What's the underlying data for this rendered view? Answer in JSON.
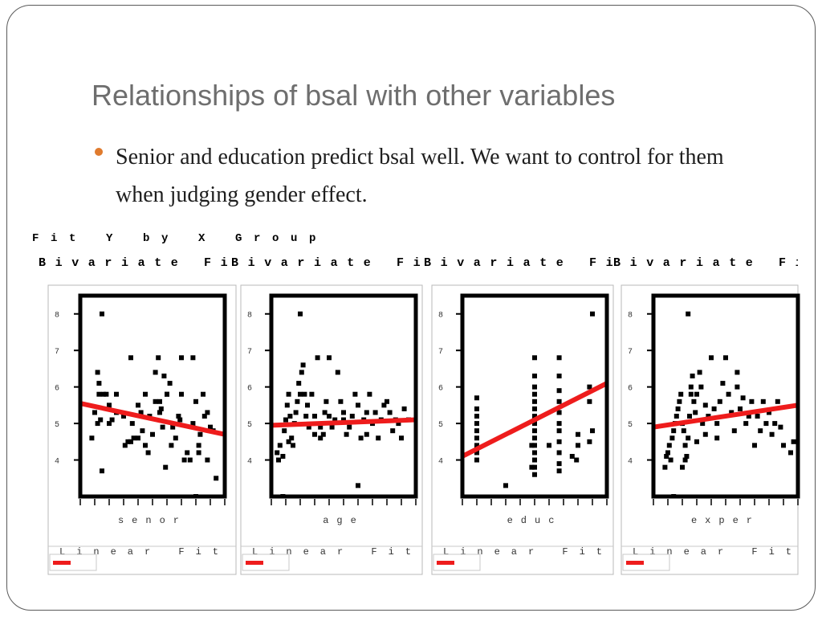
{
  "slide": {
    "title": "Relationships of bsal with other variables",
    "bullet": "Senior and education predict bsal well.  We want to control for them when judging gender effect.",
    "accent_color": "#e07b2e"
  },
  "output": {
    "heading": "Fit Y by X Group",
    "panel_title": "Bivariate Fi"
  },
  "chart_data": [
    {
      "type": "scatter",
      "xlabel": "senor",
      "ylabel": "",
      "title": "",
      "legend_label": "Linear Fit",
      "ytick_labels": [
        "8",
        "7",
        "6",
        "5",
        "4"
      ],
      "fit_color": "#ee1c1c",
      "marker_color": "#000000",
      "xlim": [
        0,
        100
      ],
      "ylim": [
        30,
        85
      ],
      "fit_line": [
        [
          0,
          55.5
        ],
        [
          100,
          47
        ]
      ],
      "points": [
        [
          15,
          80
        ],
        [
          10,
          53
        ],
        [
          12,
          50
        ],
        [
          14,
          51
        ],
        [
          8,
          46
        ],
        [
          13,
          58
        ],
        [
          16,
          58
        ],
        [
          20,
          50
        ],
        [
          22,
          51
        ],
        [
          12,
          64
        ],
        [
          13,
          61
        ],
        [
          18,
          58
        ],
        [
          20,
          55
        ],
        [
          25,
          53
        ],
        [
          30,
          52
        ],
        [
          31,
          44
        ],
        [
          33,
          45
        ],
        [
          35,
          45
        ],
        [
          37,
          46
        ],
        [
          40,
          46
        ],
        [
          42,
          53
        ],
        [
          43,
          48
        ],
        [
          45,
          44
        ],
        [
          47,
          42
        ],
        [
          50,
          47
        ],
        [
          52,
          56
        ],
        [
          55,
          56
        ],
        [
          57,
          49
        ],
        [
          56,
          54
        ],
        [
          58,
          63
        ],
        [
          60,
          58
        ],
        [
          62,
          61
        ],
        [
          64,
          49
        ],
        [
          66,
          46
        ],
        [
          68,
          52
        ],
        [
          69,
          51
        ],
        [
          70,
          58
        ],
        [
          72,
          40
        ],
        [
          74,
          42
        ],
        [
          76,
          40
        ],
        [
          78,
          50
        ],
        [
          80,
          56
        ],
        [
          82,
          44
        ],
        [
          83,
          47
        ],
        [
          85,
          58
        ],
        [
          86,
          52
        ],
        [
          88,
          53
        ],
        [
          90,
          49
        ],
        [
          70,
          68
        ],
        [
          78,
          68
        ],
        [
          54,
          68
        ],
        [
          35,
          68
        ],
        [
          52,
          64
        ],
        [
          63,
          44
        ],
        [
          59,
          38
        ],
        [
          15,
          37
        ],
        [
          60,
          58
        ],
        [
          45,
          58
        ],
        [
          40,
          55
        ],
        [
          82,
          42
        ],
        [
          94,
          35
        ],
        [
          92,
          48
        ],
        [
          88,
          40
        ],
        [
          80,
          30
        ],
        [
          36,
          50
        ],
        [
          55,
          53
        ],
        [
          48,
          52
        ],
        [
          25,
          58
        ]
      ]
    },
    {
      "type": "scatter",
      "xlabel": "age",
      "ylabel": "",
      "title": "",
      "legend_label": "Linear Fit",
      "ytick_labels": [
        "8",
        "7",
        "6",
        "5",
        "4"
      ],
      "fit_color": "#ee1c1c",
      "marker_color": "#000000",
      "xlim": [
        0,
        100
      ],
      "ylim": [
        30,
        85
      ],
      "fit_line": [
        [
          0,
          49.5
        ],
        [
          100,
          51
        ]
      ],
      "points": [
        [
          4,
          42
        ],
        [
          5,
          40
        ],
        [
          6,
          44
        ],
        [
          8,
          41
        ],
        [
          9,
          48
        ],
        [
          10,
          51
        ],
        [
          11,
          55
        ],
        [
          12,
          58
        ],
        [
          13,
          52
        ],
        [
          14,
          46
        ],
        [
          15,
          44
        ],
        [
          16,
          50
        ],
        [
          17,
          53
        ],
        [
          18,
          56
        ],
        [
          19,
          61
        ],
        [
          20,
          58
        ],
        [
          21,
          64
        ],
        [
          22,
          66
        ],
        [
          23,
          58
        ],
        [
          24,
          52
        ],
        [
          25,
          55
        ],
        [
          26,
          49
        ],
        [
          28,
          58
        ],
        [
          30,
          52
        ],
        [
          32,
          68
        ],
        [
          34,
          49
        ],
        [
          36,
          47
        ],
        [
          37,
          53
        ],
        [
          38,
          56
        ],
        [
          40,
          52
        ],
        [
          42,
          49
        ],
        [
          44,
          51
        ],
        [
          46,
          64
        ],
        [
          48,
          56
        ],
        [
          50,
          53
        ],
        [
          52,
          47
        ],
        [
          54,
          49
        ],
        [
          56,
          52
        ],
        [
          58,
          58
        ],
        [
          60,
          55
        ],
        [
          62,
          46
        ],
        [
          64,
          51
        ],
        [
          66,
          53
        ],
        [
          68,
          58
        ],
        [
          70,
          50
        ],
        [
          72,
          53
        ],
        [
          74,
          46
        ],
        [
          76,
          51
        ],
        [
          78,
          55
        ],
        [
          80,
          56
        ],
        [
          82,
          53
        ],
        [
          84,
          48
        ],
        [
          86,
          51
        ],
        [
          88,
          50
        ],
        [
          90,
          46
        ],
        [
          92,
          54
        ],
        [
          20,
          80
        ],
        [
          12,
          45
        ],
        [
          8,
          30
        ],
        [
          60,
          33
        ],
        [
          40,
          68
        ],
        [
          34,
          46
        ],
        [
          66,
          47
        ],
        [
          95,
          51
        ],
        [
          50,
          51
        ],
        [
          30,
          47
        ]
      ]
    },
    {
      "type": "scatter",
      "xlabel": "educ",
      "ylabel": "",
      "title": "",
      "legend_label": "Linear Fit",
      "ytick_labels": [
        "8",
        "7",
        "6",
        "5",
        "4"
      ],
      "fit_color": "#ee1c1c",
      "marker_color": "#000000",
      "xlim": [
        0,
        100
      ],
      "ylim": [
        30,
        85
      ],
      "fit_line": [
        [
          0,
          41
        ],
        [
          100,
          61
        ]
      ],
      "points": [
        [
          10,
          40
        ],
        [
          10,
          42
        ],
        [
          10,
          44
        ],
        [
          10,
          46
        ],
        [
          10,
          48
        ],
        [
          10,
          50
        ],
        [
          10,
          52
        ],
        [
          10,
          54
        ],
        [
          10,
          57
        ],
        [
          30,
          33
        ],
        [
          48,
          38
        ],
        [
          48,
          44
        ],
        [
          50,
          68
        ],
        [
          50,
          63
        ],
        [
          50,
          60
        ],
        [
          50,
          58
        ],
        [
          50,
          56
        ],
        [
          50,
          54
        ],
        [
          50,
          52
        ],
        [
          50,
          50
        ],
        [
          50,
          48
        ],
        [
          50,
          46
        ],
        [
          50,
          44
        ],
        [
          50,
          42
        ],
        [
          50,
          40
        ],
        [
          50,
          38
        ],
        [
          50,
          36
        ],
        [
          60,
          44
        ],
        [
          67,
          68
        ],
        [
          67,
          63
        ],
        [
          67,
          59
        ],
        [
          67,
          56
        ],
        [
          67,
          53
        ],
        [
          67,
          50
        ],
        [
          67,
          48
        ],
        [
          67,
          45
        ],
        [
          67,
          42
        ],
        [
          67,
          39
        ],
        [
          67,
          37
        ],
        [
          80,
          47
        ],
        [
          80,
          44
        ],
        [
          76,
          41
        ],
        [
          79,
          40
        ],
        [
          88,
          60
        ],
        [
          88,
          56
        ],
        [
          90,
          80
        ],
        [
          90,
          48
        ],
        [
          88,
          45
        ]
      ]
    },
    {
      "type": "scatter",
      "xlabel": "exper",
      "ylabel": "",
      "title": "",
      "legend_label": "Linear Fit",
      "ytick_labels": [
        "8",
        "7",
        "6",
        "5",
        "4"
      ],
      "fit_color": "#ee1c1c",
      "marker_color": "#000000",
      "xlim": [
        0,
        100
      ],
      "ylim": [
        30,
        85
      ],
      "fit_line": [
        [
          0,
          49
        ],
        [
          100,
          55
        ]
      ],
      "points": [
        [
          8,
          38
        ],
        [
          9,
          41
        ],
        [
          10,
          42
        ],
        [
          11,
          44
        ],
        [
          12,
          40
        ],
        [
          13,
          46
        ],
        [
          14,
          48
        ],
        [
          15,
          50
        ],
        [
          16,
          52
        ],
        [
          17,
          54
        ],
        [
          18,
          56
        ],
        [
          19,
          58
        ],
        [
          20,
          50
        ],
        [
          21,
          48
        ],
        [
          22,
          44
        ],
        [
          23,
          41
        ],
        [
          24,
          46
        ],
        [
          25,
          52
        ],
        [
          26,
          60
        ],
        [
          27,
          63
        ],
        [
          28,
          56
        ],
        [
          29,
          53
        ],
        [
          30,
          58
        ],
        [
          32,
          64
        ],
        [
          34,
          50
        ],
        [
          36,
          47
        ],
        [
          38,
          52
        ],
        [
          40,
          68
        ],
        [
          42,
          54
        ],
        [
          44,
          50
        ],
        [
          46,
          56
        ],
        [
          48,
          61
        ],
        [
          50,
          68
        ],
        [
          52,
          58
        ],
        [
          54,
          53
        ],
        [
          56,
          48
        ],
        [
          58,
          60
        ],
        [
          60,
          54
        ],
        [
          62,
          57
        ],
        [
          64,
          50
        ],
        [
          66,
          52
        ],
        [
          68,
          56
        ],
        [
          70,
          44
        ],
        [
          72,
          52
        ],
        [
          74,
          48
        ],
        [
          76,
          56
        ],
        [
          78,
          50
        ],
        [
          80,
          53
        ],
        [
          82,
          47
        ],
        [
          84,
          50
        ],
        [
          86,
          56
        ],
        [
          88,
          49
        ],
        [
          90,
          44
        ],
        [
          95,
          42
        ],
        [
          97,
          45
        ],
        [
          24,
          80
        ],
        [
          20,
          38
        ],
        [
          14,
          30
        ],
        [
          22,
          40
        ],
        [
          30,
          45
        ],
        [
          36,
          55
        ],
        [
          44,
          46
        ],
        [
          58,
          64
        ],
        [
          33,
          60
        ],
        [
          26,
          58
        ]
      ]
    }
  ]
}
